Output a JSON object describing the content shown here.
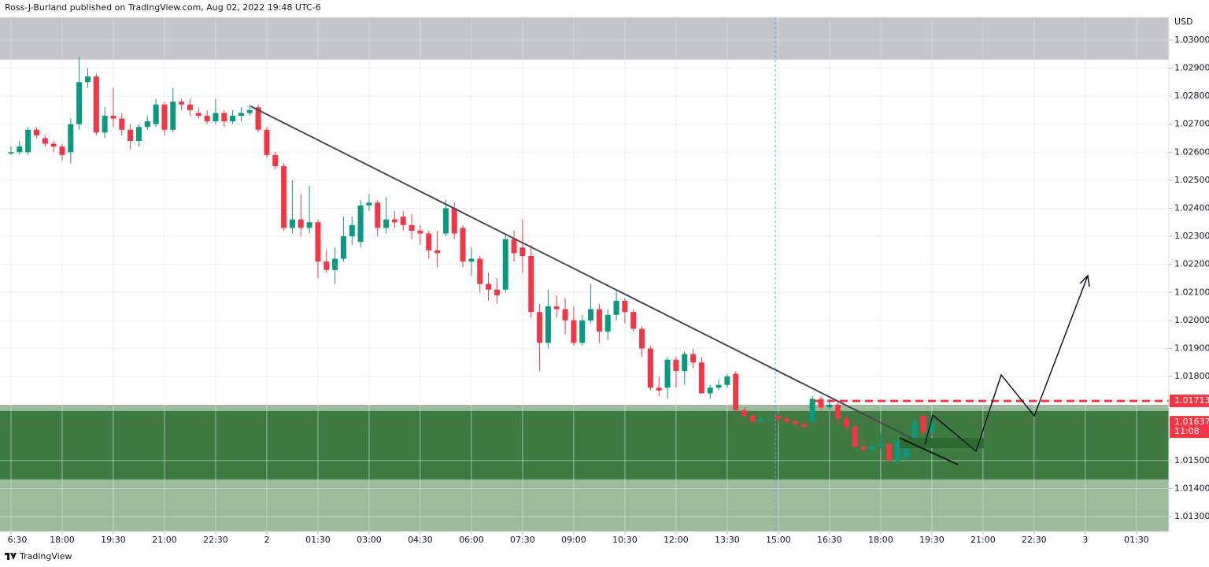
{
  "header": {
    "text": "Ross-J-Burland published on TradingView.com, Aug 02, 2022 19:48 UTC-6"
  },
  "footer": {
    "brand": "TradingView"
  },
  "chart_data": {
    "type": "candlestick",
    "currency": "USD",
    "up_color": "#089981",
    "down_color": "#f23645",
    "grid": true,
    "xlim": [
      -1.29,
      135.8
    ],
    "ylim": [
      1.01247,
      1.03081
    ],
    "xticks": [
      {
        "value": 0,
        "label": "6:30"
      },
      {
        "value": 6,
        "label": "18:00"
      },
      {
        "value": 12,
        "label": "19:30"
      },
      {
        "value": 18,
        "label": "21:00"
      },
      {
        "value": 24,
        "label": "22:30"
      },
      {
        "value": 30,
        "label": "2"
      },
      {
        "value": 36,
        "label": "01:30"
      },
      {
        "value": 42,
        "label": "03:00"
      },
      {
        "value": 48,
        "label": "04:30"
      },
      {
        "value": 54,
        "label": "06:00"
      },
      {
        "value": 60,
        "label": "07:30"
      },
      {
        "value": 66,
        "label": "09:00"
      },
      {
        "value": 72,
        "label": "10:30"
      },
      {
        "value": 78,
        "label": "12:00"
      },
      {
        "value": 84,
        "label": "13:30"
      },
      {
        "value": 90,
        "label": "15:00"
      },
      {
        "value": 96,
        "label": "16:30"
      },
      {
        "value": 102,
        "label": "18:00"
      },
      {
        "value": 108,
        "label": "19:30"
      },
      {
        "value": 114,
        "label": "21:00"
      },
      {
        "value": 120,
        "label": "22:30"
      },
      {
        "value": 126,
        "label": "3"
      },
      {
        "value": 132,
        "label": "01:30"
      }
    ],
    "yticks": [
      {
        "value": 1.03,
        "label": "1.03000"
      },
      {
        "value": 1.029,
        "label": "1.02900"
      },
      {
        "value": 1.028,
        "label": "1.02800"
      },
      {
        "value": 1.027,
        "label": "1.02700"
      },
      {
        "value": 1.026,
        "label": "1.02600"
      },
      {
        "value": 1.025,
        "label": "1.02500"
      },
      {
        "value": 1.024,
        "label": "1.02400"
      },
      {
        "value": 1.023,
        "label": "1.02300"
      },
      {
        "value": 1.022,
        "label": "1.02200"
      },
      {
        "value": 1.021,
        "label": "1.02100"
      },
      {
        "value": 1.02,
        "label": "1.02000"
      },
      {
        "value": 1.019,
        "label": "1.01900"
      },
      {
        "value": 1.018,
        "label": "1.01800"
      },
      {
        "value": 1.015,
        "label": "1.01500"
      },
      {
        "value": 1.014,
        "label": "1.01400"
      },
      {
        "value": 1.013,
        "label": "1.01300"
      }
    ],
    "zones": [
      {
        "range": [
          1.0293,
          1.03081
        ],
        "color": "#c5c6ca"
      },
      {
        "range": [
          1.01247,
          1.01699
        ],
        "color": "#9dbb9b"
      },
      {
        "range": [
          1.01433,
          1.01677
        ],
        "color": "#3e7b40"
      }
    ],
    "level": {
      "value": 1.01713,
      "label": "1.01713",
      "color": "#f23645"
    },
    "last_price": {
      "value": 1.01637,
      "label": "1.01637",
      "countdown": "11:08"
    },
    "trendline": {
      "x": [
        28.1,
        107.2
      ],
      "y": [
        1.02764,
        1.01556
      ]
    },
    "ohlc": [
      [
        1.02595,
        1.0262,
        1.0259,
        1.026
      ],
      [
        1.026,
        1.0264,
        1.0259,
        1.0262
      ],
      [
        1.026,
        1.0269,
        1.0259,
        1.0268
      ],
      [
        1.0268,
        1.0269,
        1.0265,
        1.0266
      ],
      [
        1.0265,
        1.0266,
        1.0262,
        1.0263
      ],
      [
        1.0263,
        1.0264,
        1.026,
        1.0262
      ],
      [
        1.0262,
        1.0263,
        1.0257,
        1.0259
      ],
      [
        1.026,
        1.0272,
        1.0256,
        1.027
      ],
      [
        1.027,
        1.0294,
        1.0268,
        1.0285
      ],
      [
        1.0285,
        1.029,
        1.0283,
        1.0287
      ],
      [
        1.0287,
        1.0288,
        1.0266,
        1.0267
      ],
      [
        1.0267,
        1.0276,
        1.0265,
        1.0273
      ],
      [
        1.0273,
        1.0283,
        1.0269,
        1.0272
      ],
      [
        1.0272,
        1.0274,
        1.0266,
        1.0268
      ],
      [
        1.0268,
        1.027,
        1.0261,
        1.0264
      ],
      [
        1.0264,
        1.027,
        1.0262,
        1.0269
      ],
      [
        1.0269,
        1.0273,
        1.0268,
        1.0271
      ],
      [
        1.027,
        1.0279,
        1.0269,
        1.0277
      ],
      [
        1.0277,
        1.0278,
        1.0266,
        1.0268
      ],
      [
        1.0268,
        1.0283,
        1.0267,
        1.0278
      ],
      [
        1.0278,
        1.0279,
        1.0275,
        1.0277
      ],
      [
        1.0277,
        1.0279,
        1.0273,
        1.0275
      ],
      [
        1.0274,
        1.0276,
        1.0272,
        1.0273
      ],
      [
        1.0273,
        1.0275,
        1.027,
        1.0271
      ],
      [
        1.0271,
        1.0279,
        1.027,
        1.0274
      ],
      [
        1.0274,
        1.0275,
        1.0269,
        1.0271
      ],
      [
        1.0271,
        1.0275,
        1.027,
        1.0273
      ],
      [
        1.0273,
        1.0276,
        1.0271,
        1.0274
      ],
      [
        1.0274,
        1.0277,
        1.0273,
        1.0275
      ],
      [
        1.0276,
        1.0277,
        1.0267,
        1.0268
      ],
      [
        1.0268,
        1.0269,
        1.0258,
        1.0259
      ],
      [
        1.0259,
        1.026,
        1.0254,
        1.0255
      ],
      [
        1.0255,
        1.0256,
        1.0232,
        1.0233
      ],
      [
        1.0233,
        1.025,
        1.0231,
        1.0236
      ],
      [
        1.0236,
        1.0245,
        1.023,
        1.0233
      ],
      [
        1.0233,
        1.0248,
        1.0231,
        1.0235
      ],
      [
        1.0235,
        1.0236,
        1.0215,
        1.0221
      ],
      [
        1.0221,
        1.0225,
        1.0217,
        1.0218
      ],
      [
        1.0218,
        1.0226,
        1.0213,
        1.0222
      ],
      [
        1.0222,
        1.0237,
        1.0221,
        1.023
      ],
      [
        1.023,
        1.0237,
        1.0227,
        1.0234
      ],
      [
        1.0228,
        1.0243,
        1.0226,
        1.0241
      ],
      [
        1.0241,
        1.0245,
        1.0239,
        1.0242
      ],
      [
        1.0242,
        1.0243,
        1.023,
        1.0233
      ],
      [
        1.0233,
        1.0244,
        1.0231,
        1.0236
      ],
      [
        1.0236,
        1.0239,
        1.0233,
        1.0235
      ],
      [
        1.0237,
        1.0239,
        1.0232,
        1.0234
      ],
      [
        1.0234,
        1.0238,
        1.0229,
        1.0232
      ],
      [
        1.0232,
        1.0234,
        1.0227,
        1.0231
      ],
      [
        1.0231,
        1.0232,
        1.0222,
        1.0225
      ],
      [
        1.0225,
        1.0232,
        1.0219,
        1.0224
      ],
      [
        1.0231,
        1.0243,
        1.023,
        1.024
      ],
      [
        1.024,
        1.0242,
        1.0229,
        1.0231
      ],
      [
        1.0233,
        1.0234,
        1.0219,
        1.0221
      ],
      [
        1.0221,
        1.0226,
        1.0216,
        1.0222
      ],
      [
        1.0222,
        1.0223,
        1.021,
        1.0213
      ],
      [
        1.0213,
        1.0217,
        1.0207,
        1.0211
      ],
      [
        1.0211,
        1.0215,
        1.0206,
        1.0209
      ],
      [
        1.0211,
        1.0231,
        1.021,
        1.0229
      ],
      [
        1.0229,
        1.0232,
        1.0221,
        1.0224
      ],
      [
        1.0226,
        1.0236,
        1.0217,
        1.0223
      ],
      [
        1.0223,
        1.0227,
        1.0201,
        1.0203
      ],
      [
        1.0203,
        1.0206,
        1.0182,
        1.0192
      ],
      [
        1.0192,
        1.0211,
        1.019,
        1.0205
      ],
      [
        1.0205,
        1.0209,
        1.0201,
        1.0204
      ],
      [
        1.0204,
        1.0208,
        1.0195,
        1.02
      ],
      [
        1.02,
        1.0205,
        1.0191,
        1.0192
      ],
      [
        1.0192,
        1.0202,
        1.0191,
        1.02
      ],
      [
        1.02,
        1.0213,
        1.0199,
        1.0204
      ],
      [
        1.0204,
        1.0206,
        1.0192,
        1.0196
      ],
      [
        1.0196,
        1.0204,
        1.0193,
        1.0202
      ],
      [
        1.0202,
        1.0211,
        1.02,
        1.0207
      ],
      [
        1.0207,
        1.0208,
        1.0199,
        1.0203
      ],
      [
        1.0203,
        1.0204,
        1.0196,
        1.0197
      ],
      [
        1.0197,
        1.0198,
        1.0187,
        1.019
      ],
      [
        1.019,
        1.0191,
        1.0175,
        1.0176
      ],
      [
        1.0176,
        1.018,
        1.0173,
        1.0175
      ],
      [
        1.0176,
        1.0187,
        1.0172,
        1.0186
      ],
      [
        1.0186,
        1.0187,
        1.0176,
        1.0182
      ],
      [
        1.0182,
        1.0189,
        1.0177,
        1.0188
      ],
      [
        1.0188,
        1.019,
        1.0183,
        1.0185
      ],
      [
        1.0185,
        1.0187,
        1.0174,
        1.0174
      ],
      [
        1.0174,
        1.0177,
        1.0172,
        1.0176
      ],
      [
        1.0176,
        1.0179,
        1.0175,
        1.0177
      ],
      [
        1.0177,
        1.0181,
        1.0176,
        1.018
      ],
      [
        1.0181,
        1.0182,
        1.0167,
        1.0168
      ],
      [
        1.0168,
        1.0169,
        1.0165,
        1.0166
      ],
      [
        1.0166,
        1.0167,
        1.0163,
        1.0164
      ],
      [
        1.0164,
        1.0166,
        1.0163,
        1.0165
      ],
      [
        1.0165,
        1.0166,
        1.0164,
        1.0165
      ],
      [
        1.0166,
        1.0167,
        1.0164,
        1.0165
      ],
      [
        1.0165,
        1.0166,
        1.0163,
        1.0164
      ],
      [
        1.0164,
        1.0165,
        1.0162,
        1.0163
      ],
      [
        1.0163,
        1.0164,
        1.0161,
        1.0162
      ],
      [
        1.0164,
        1.0173,
        1.0163,
        1.0172
      ],
      [
        1.0172,
        1.0173,
        1.0168,
        1.0169
      ],
      [
        1.0169,
        1.0172,
        1.0168,
        1.017
      ],
      [
        1.017,
        1.0171,
        1.0163,
        1.0165
      ],
      [
        1.0165,
        1.0166,
        1.016,
        1.0162
      ],
      [
        1.0162,
        1.0163,
        1.0154,
        1.0155
      ],
      [
        1.0155,
        1.0158,
        1.0153,
        1.0154
      ],
      [
        1.0154,
        1.0157,
        1.0153,
        1.0155
      ],
      [
        1.0155,
        1.016,
        1.0154,
        1.0156
      ],
      [
        1.0156,
        1.0157,
        1.015,
        1.015
      ],
      [
        1.015,
        1.0158,
        1.0149,
        1.0157
      ],
      [
        1.0151,
        1.0159,
        1.015,
        1.0157
      ],
      [
        1.0157,
        1.0165,
        1.0156,
        1.0164
      ],
      [
        1.0166,
        1.0167,
        1.0159,
        1.016
      ],
      [
        1.016,
        1.0165,
        1.0159,
        1.0164
      ]
    ]
  }
}
